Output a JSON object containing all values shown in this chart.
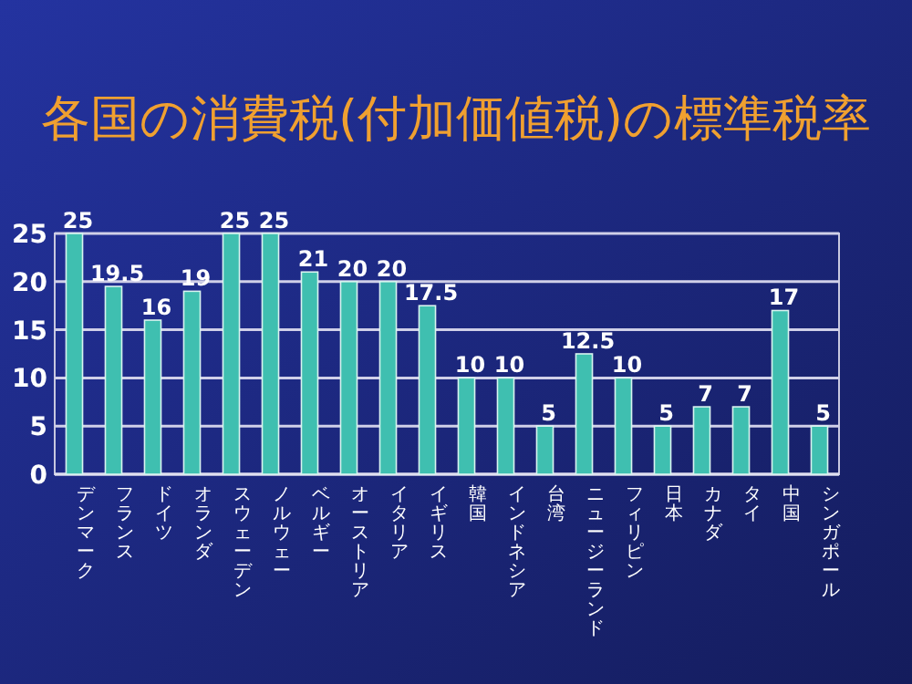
{
  "chart_data": {
    "type": "bar",
    "title": "各国の消費税(付加価値税)の標準税率",
    "categories": [
      "デンマーク",
      "フランス",
      "ドイツ",
      "オランダ",
      "スウェーデン",
      "ノルウェー",
      "ベルギー",
      "オーストリア",
      "イタリア",
      "イギリス",
      "韓国",
      "インドネシア",
      "台湾",
      "ニュージーランド",
      "フィリピン",
      "日本",
      "カナダ",
      "タイ",
      "中国",
      "シンガポール"
    ],
    "values": [
      25,
      19.5,
      16,
      19,
      25,
      25,
      21,
      20,
      20,
      17.5,
      10,
      10,
      5,
      12.5,
      10,
      5,
      7,
      7,
      17,
      5
    ],
    "color": "#3fbfb0",
    "ylim": [
      0,
      25
    ],
    "yticks": [
      0,
      5,
      10,
      15,
      20,
      25
    ],
    "grid": "y",
    "data_labels": true
  }
}
